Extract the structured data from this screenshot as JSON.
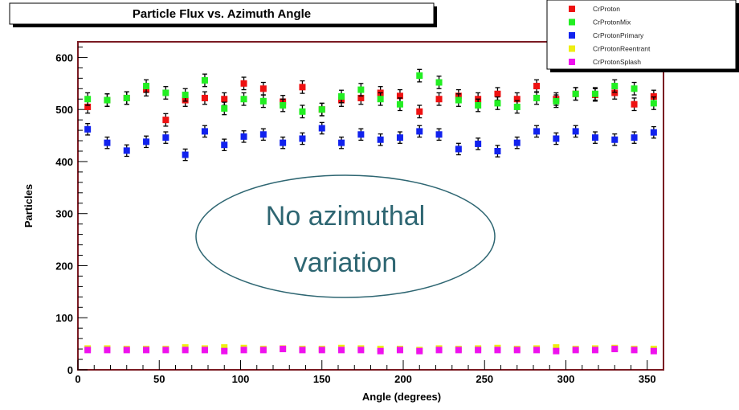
{
  "colors": {
    "frame": "#7a1a22",
    "annotation_text": "#2e6672",
    "annotation_border": "#2e6672"
  },
  "annotation": {
    "line1": "No azimuthal",
    "line2": "variation"
  },
  "chart_data": {
    "type": "scatter",
    "title": "Particle Flux vs. Azimuth Angle",
    "xlabel": "Angle (degrees)",
    "ylabel": "Particles",
    "xlim": [
      0,
      360
    ],
    "ylim": [
      0,
      630
    ],
    "x_ticks": [
      0,
      50,
      100,
      150,
      200,
      250,
      300,
      350
    ],
    "y_ticks": [
      0,
      100,
      200,
      300,
      400,
      500,
      600
    ],
    "legend_position": "top-right",
    "x": [
      6,
      18,
      30,
      42,
      54,
      66,
      78,
      90,
      102,
      114,
      126,
      138,
      150,
      162,
      174,
      186,
      198,
      210,
      222,
      234,
      246,
      258,
      270,
      282,
      294,
      306,
      318,
      330,
      342,
      354
    ],
    "series": [
      {
        "name": "CrProton",
        "color": "#ee1111",
        "values": [
          505,
          518,
          522,
          538,
          480,
          518,
          522,
          520,
          550,
          540,
          515,
          543,
          500,
          518,
          522,
          532,
          526,
          496,
          520,
          526,
          520,
          530,
          520,
          545,
          520,
          530,
          528,
          532,
          510,
          525
        ],
        "err": 12
      },
      {
        "name": "CrProtonMix",
        "color": "#22ee22",
        "values": [
          520,
          518,
          522,
          545,
          532,
          528,
          556,
          502,
          520,
          516,
          508,
          496,
          500,
          525,
          538,
          520,
          510,
          565,
          552,
          518,
          508,
          512,
          505,
          522,
          516,
          530,
          530,
          545,
          540,
          512
        ],
        "err": 12
      },
      {
        "name": "CrProtonPrimary",
        "color": "#1122ee",
        "values": [
          462,
          436,
          421,
          438,
          446,
          413,
          458,
          432,
          448,
          452,
          436,
          444,
          464,
          436,
          452,
          442,
          446,
          458,
          452,
          424,
          434,
          420,
          436,
          458,
          444,
          458,
          446,
          442,
          446,
          456
        ],
        "err": 11
      },
      {
        "name": "CrProtonReentrant",
        "color": "#eeee11",
        "values": [
          41,
          41,
          40,
          40,
          40,
          43,
          41,
          43,
          42,
          40,
          41,
          40,
          40,
          42,
          41,
          40,
          40,
          38,
          41,
          40,
          41,
          42,
          40,
          41,
          43,
          40,
          41,
          42,
          40,
          40
        ],
        "err": 3
      },
      {
        "name": "CrProtonSplash",
        "color": "#ee11ee",
        "values": [
          38,
          38,
          38,
          38,
          38,
          38,
          38,
          36,
          38,
          38,
          40,
          38,
          38,
          38,
          38,
          36,
          38,
          36,
          38,
          38,
          38,
          38,
          38,
          38,
          36,
          38,
          38,
          40,
          38,
          36
        ],
        "err": 3
      }
    ]
  }
}
